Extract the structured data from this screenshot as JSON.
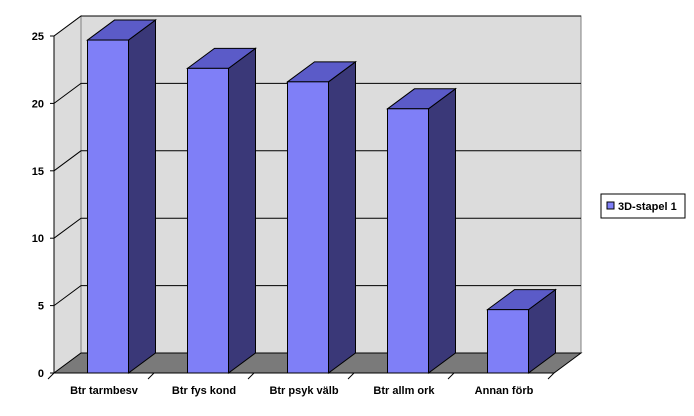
{
  "chart_data": {
    "type": "bar",
    "categories": [
      "Btr tarmbesv",
      "Btr fys kond",
      "Btr psyk välb",
      "Btr allm ork",
      "Annan förb"
    ],
    "series": [
      {
        "name": "3D-stapel 1",
        "values": [
          24.7,
          22.6,
          21.6,
          19.6,
          4.7
        ]
      }
    ],
    "yticks": [
      "0",
      "5",
      "10",
      "15",
      "20",
      "25"
    ],
    "ylim": [
      0,
      25
    ],
    "title": "",
    "xlabel": "",
    "ylabel": "",
    "grid": true,
    "legend": "right",
    "style": "3d-column",
    "colors": {
      "bar_front": "#7f7ff7",
      "bar_side": "#3a3878",
      "bar_top": "#5b5bc8",
      "wall": "#dcdcdc",
      "floor": "#7a7a7a",
      "gridline": "#000000",
      "axis": "#000000"
    }
  }
}
